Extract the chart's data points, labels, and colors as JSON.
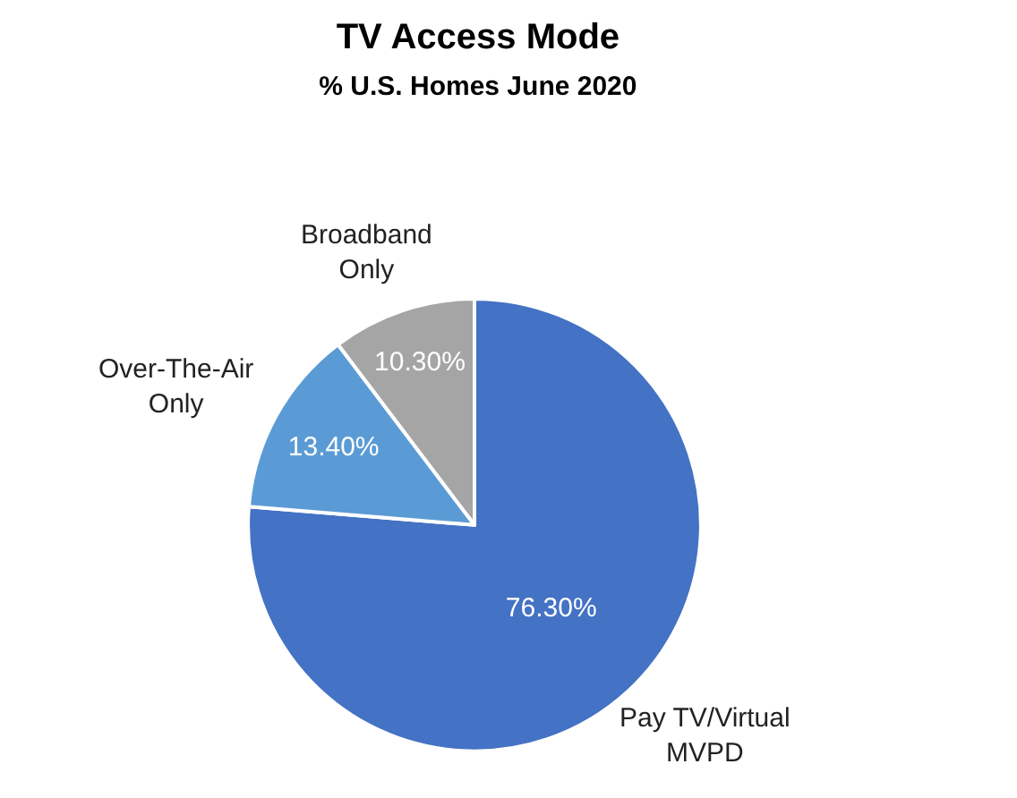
{
  "chart_data": {
    "type": "pie",
    "title": "TV Access Mode",
    "subtitle": "% U.S. Homes June 2020",
    "categories": [
      "Pay TV/Virtual\nMVPD",
      "Over-The-Air\nOnly",
      "Broadband\nOnly"
    ],
    "values": [
      76.3,
      13.4,
      10.3
    ],
    "value_labels": [
      "76.30%",
      "13.40%",
      "10.30%"
    ],
    "colors": [
      "#4472c4",
      "#5b9bd5",
      "#a5a5a5"
    ],
    "legend": false
  }
}
